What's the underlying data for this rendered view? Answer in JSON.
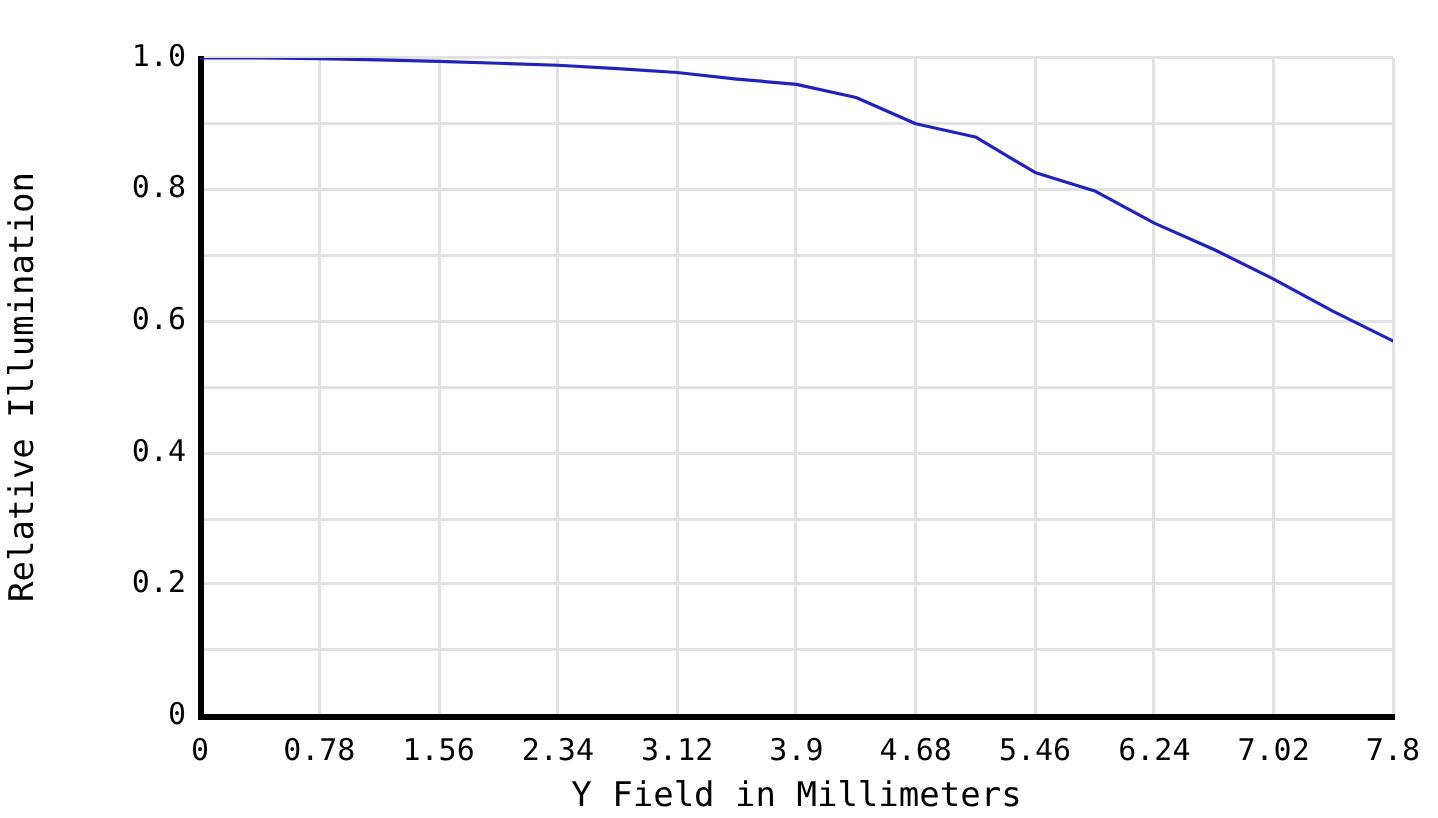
{
  "chart_data": {
    "type": "line",
    "xlabel": "Y Field in Millimeters",
    "ylabel": "Relative Illumination",
    "x": [
      0,
      0.39,
      0.78,
      1.17,
      1.56,
      1.95,
      2.34,
      2.73,
      3.12,
      3.51,
      3.9,
      4.29,
      4.68,
      5.07,
      5.46,
      5.85,
      6.24,
      6.63,
      7.02,
      7.41,
      7.8
    ],
    "series": [
      {
        "color": "#2222bb",
        "values": [
          1.0,
          1.0,
          0.999,
          0.997,
          0.995,
          0.992,
          0.989,
          0.984,
          0.978,
          0.968,
          0.96,
          0.94,
          0.9,
          0.88,
          0.826,
          0.798,
          0.749,
          0.709,
          0.664,
          0.615,
          0.57
        ]
      }
    ],
    "xlim": [
      0,
      7.8
    ],
    "ylim": [
      0,
      1
    ],
    "xticks": [
      0,
      0.78,
      1.56,
      2.34,
      3.12,
      3.9,
      4.68,
      5.46,
      6.24,
      7.02,
      7.8
    ],
    "yticks": [
      0,
      {
        "value": 0.1,
        "label": null
      },
      0.2,
      {
        "value": 0.3,
        "label": null
      },
      0.4,
      {
        "value": 0.5,
        "label": null
      },
      0.6,
      {
        "value": 0.7,
        "label": null
      },
      0.8,
      {
        "value": 0.9,
        "label": null
      },
      {
        "value": 1,
        "label": "1.0"
      }
    ],
    "grid": true
  }
}
